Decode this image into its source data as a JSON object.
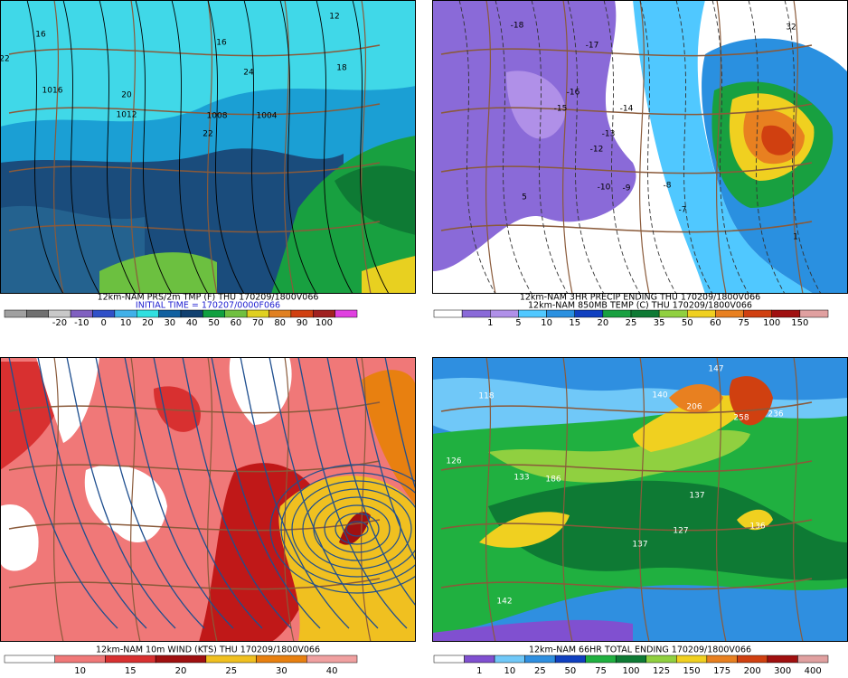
{
  "panels": [
    {
      "captions": [
        "12km-NAM PRS/2m TMP (F) THU 170209/1800V066",
        "INITIAL TIME = 170207/0000F066"
      ],
      "colorbar": [
        "-20",
        "-10",
        "0",
        "10",
        "20",
        "30",
        "40",
        "50",
        "60",
        "70",
        "80",
        "90",
        "100"
      ],
      "map_labels": [
        "16",
        "22",
        "1016",
        "20",
        "1012",
        "16",
        "24",
        "1008",
        "1004",
        "22",
        "18",
        "12"
      ]
    },
    {
      "captions": [
        "12km-NAM 3HR PRECIP ENDING THU 170209/1800V066",
        "12km-NAM 850MB TEMP (C) THU 170209/1800V066"
      ],
      "colorbar": [
        "1",
        "5",
        "10",
        "15",
        "20",
        "25",
        "35",
        "50",
        "60",
        "75",
        "100",
        "150"
      ],
      "map_labels": [
        "-18",
        "-17",
        "-16",
        "-15",
        "-14",
        "-13",
        "-12",
        "-10",
        "-9",
        "-8",
        "-7",
        "32",
        "1",
        "5"
      ]
    },
    {
      "captions": [
        "12km-NAM 10m WIND (KTS) THU 170209/1800V066"
      ],
      "colorbar": [
        "10",
        "15",
        "20",
        "25",
        "30",
        "40"
      ],
      "map_labels": []
    },
    {
      "captions": [
        "12km-NAM 66HR TOTAL ENDING 170209/1800V066"
      ],
      "colorbar": [
        "1",
        "10",
        "25",
        "50",
        "75",
        "100",
        "125",
        "150",
        "175",
        "200",
        "300",
        "400"
      ],
      "map_labels": [
        "118",
        "140",
        "147",
        "206",
        "258",
        "236",
        "126",
        "133",
        "186",
        "137",
        "127",
        "137",
        "142",
        "136"
      ]
    }
  ]
}
